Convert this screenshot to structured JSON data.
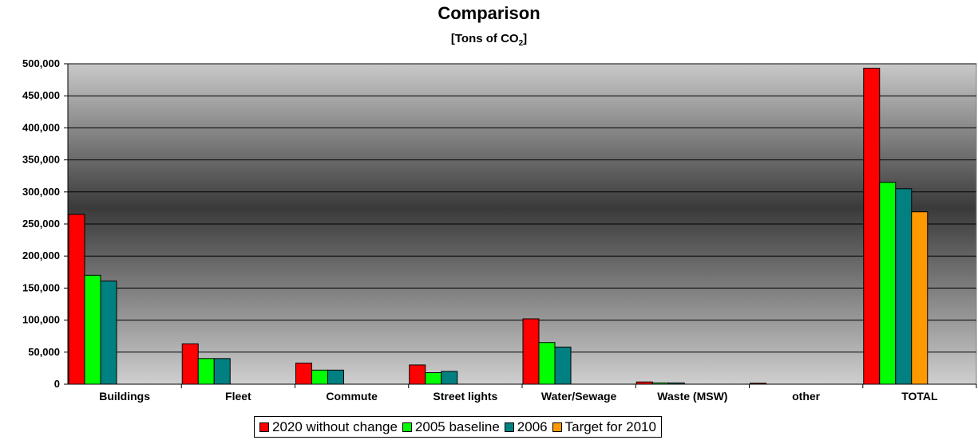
{
  "chart_data": {
    "type": "bar",
    "title": "Comparison",
    "subtitle": {
      "prefix": "[Tons of CO",
      "subscript": "2",
      "suffix": "]"
    },
    "xlabel": "",
    "ylabel": "",
    "ylim": [
      0,
      500000
    ],
    "yticks": [
      0,
      50000,
      100000,
      150000,
      200000,
      250000,
      300000,
      350000,
      400000,
      450000,
      500000
    ],
    "ytick_labels": [
      "0",
      "50,000",
      "100,000",
      "150,000",
      "200,000",
      "250,000",
      "300,000",
      "350,000",
      "400,000",
      "450,000",
      "500,000"
    ],
    "grid": true,
    "legend_position": "bottom",
    "categories": [
      "Buildings",
      "Fleet",
      "Commute",
      "Street lights",
      "Water/Sewage",
      "Waste (MSW)",
      "other",
      "TOTAL"
    ],
    "series": [
      {
        "name": "2020 without change",
        "color": "#ff0000",
        "values": [
          265000,
          63000,
          33000,
          30000,
          102000,
          3500,
          1500,
          493000
        ]
      },
      {
        "name": "2005 baseline",
        "color": "#00ff00",
        "values": [
          170000,
          40000,
          22000,
          18000,
          65000,
          2000,
          0,
          315000
        ]
      },
      {
        "name": "2006",
        "color": "#008080",
        "values": [
          161000,
          40000,
          22000,
          20000,
          58000,
          2000,
          0,
          305000
        ]
      },
      {
        "name": "Target for 2010",
        "color": "#ff9900",
        "values": [
          0,
          0,
          0,
          0,
          0,
          0,
          0,
          269000
        ]
      }
    ]
  }
}
